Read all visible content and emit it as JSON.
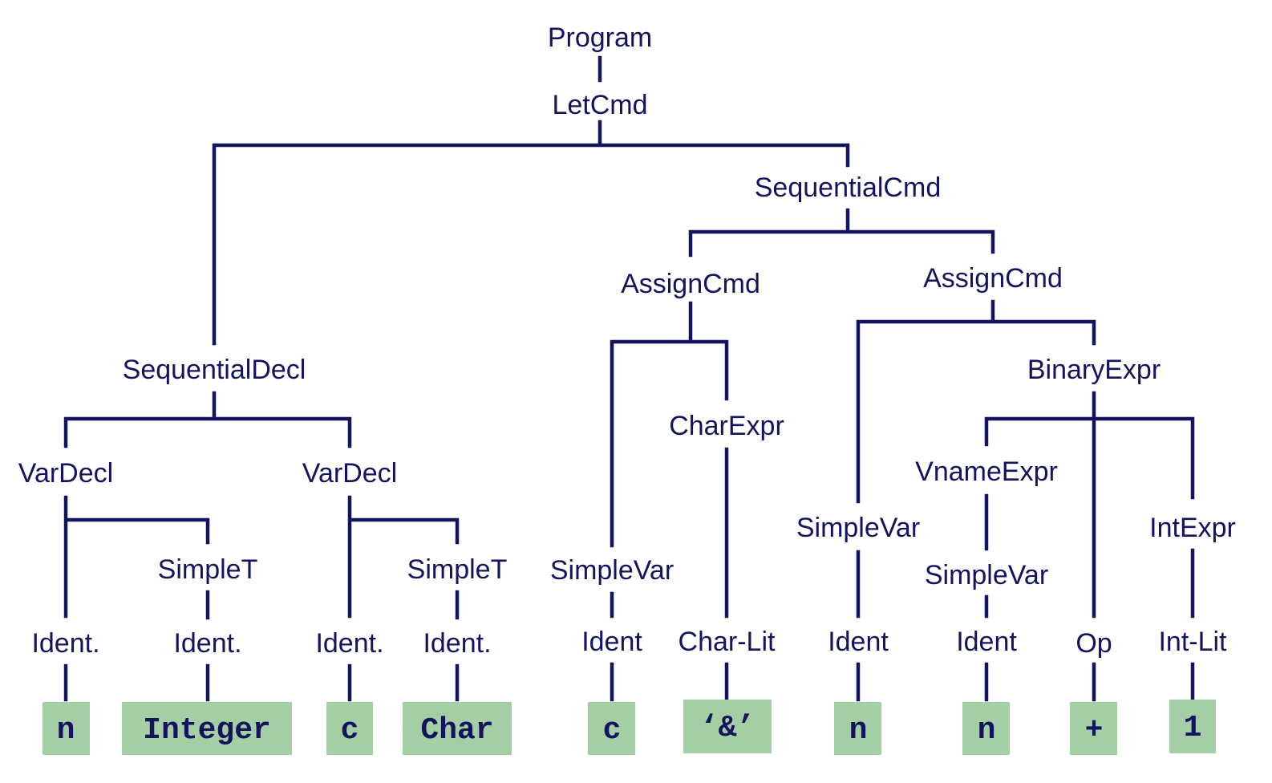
{
  "diagram": {
    "colors": {
      "edge": "#14145e",
      "text": "#14145e",
      "leaf_fill": "#a4cfa4"
    },
    "nodes": {
      "program": "Program",
      "letcmd": "LetCmd",
      "seqdecl": "SequentialDecl",
      "seqcmd": "SequentialCmd",
      "vardecl1": "VarDecl",
      "vardecl2": "VarDecl",
      "simplet1": "SimpleT",
      "simplet2": "SimpleT",
      "ident1": "Ident.",
      "ident2": "Ident.",
      "ident3": "Ident.",
      "ident4": "Ident.",
      "assign1": "AssignCmd",
      "assign2": "AssignCmd",
      "simplevar1": "SimpleVar",
      "charexpr": "CharExpr",
      "ident5": "Ident",
      "charlit": "Char-Lit",
      "simplevar2": "SimpleVar",
      "binaryexpr": "BinaryExpr",
      "vnameexpr": "VnameExpr",
      "intexpr": "IntExpr",
      "simplevar3": "SimpleVar",
      "ident6": "Ident",
      "ident7": "Ident",
      "op": "Op",
      "intlit": "Int-Lit"
    },
    "leaves": {
      "n1": "n",
      "integer": "Integer",
      "c1": "c",
      "char": "Char",
      "c2": "c",
      "amp": "‘&’",
      "n2": "n",
      "n3": "n",
      "plus": "+",
      "one": "1"
    }
  }
}
